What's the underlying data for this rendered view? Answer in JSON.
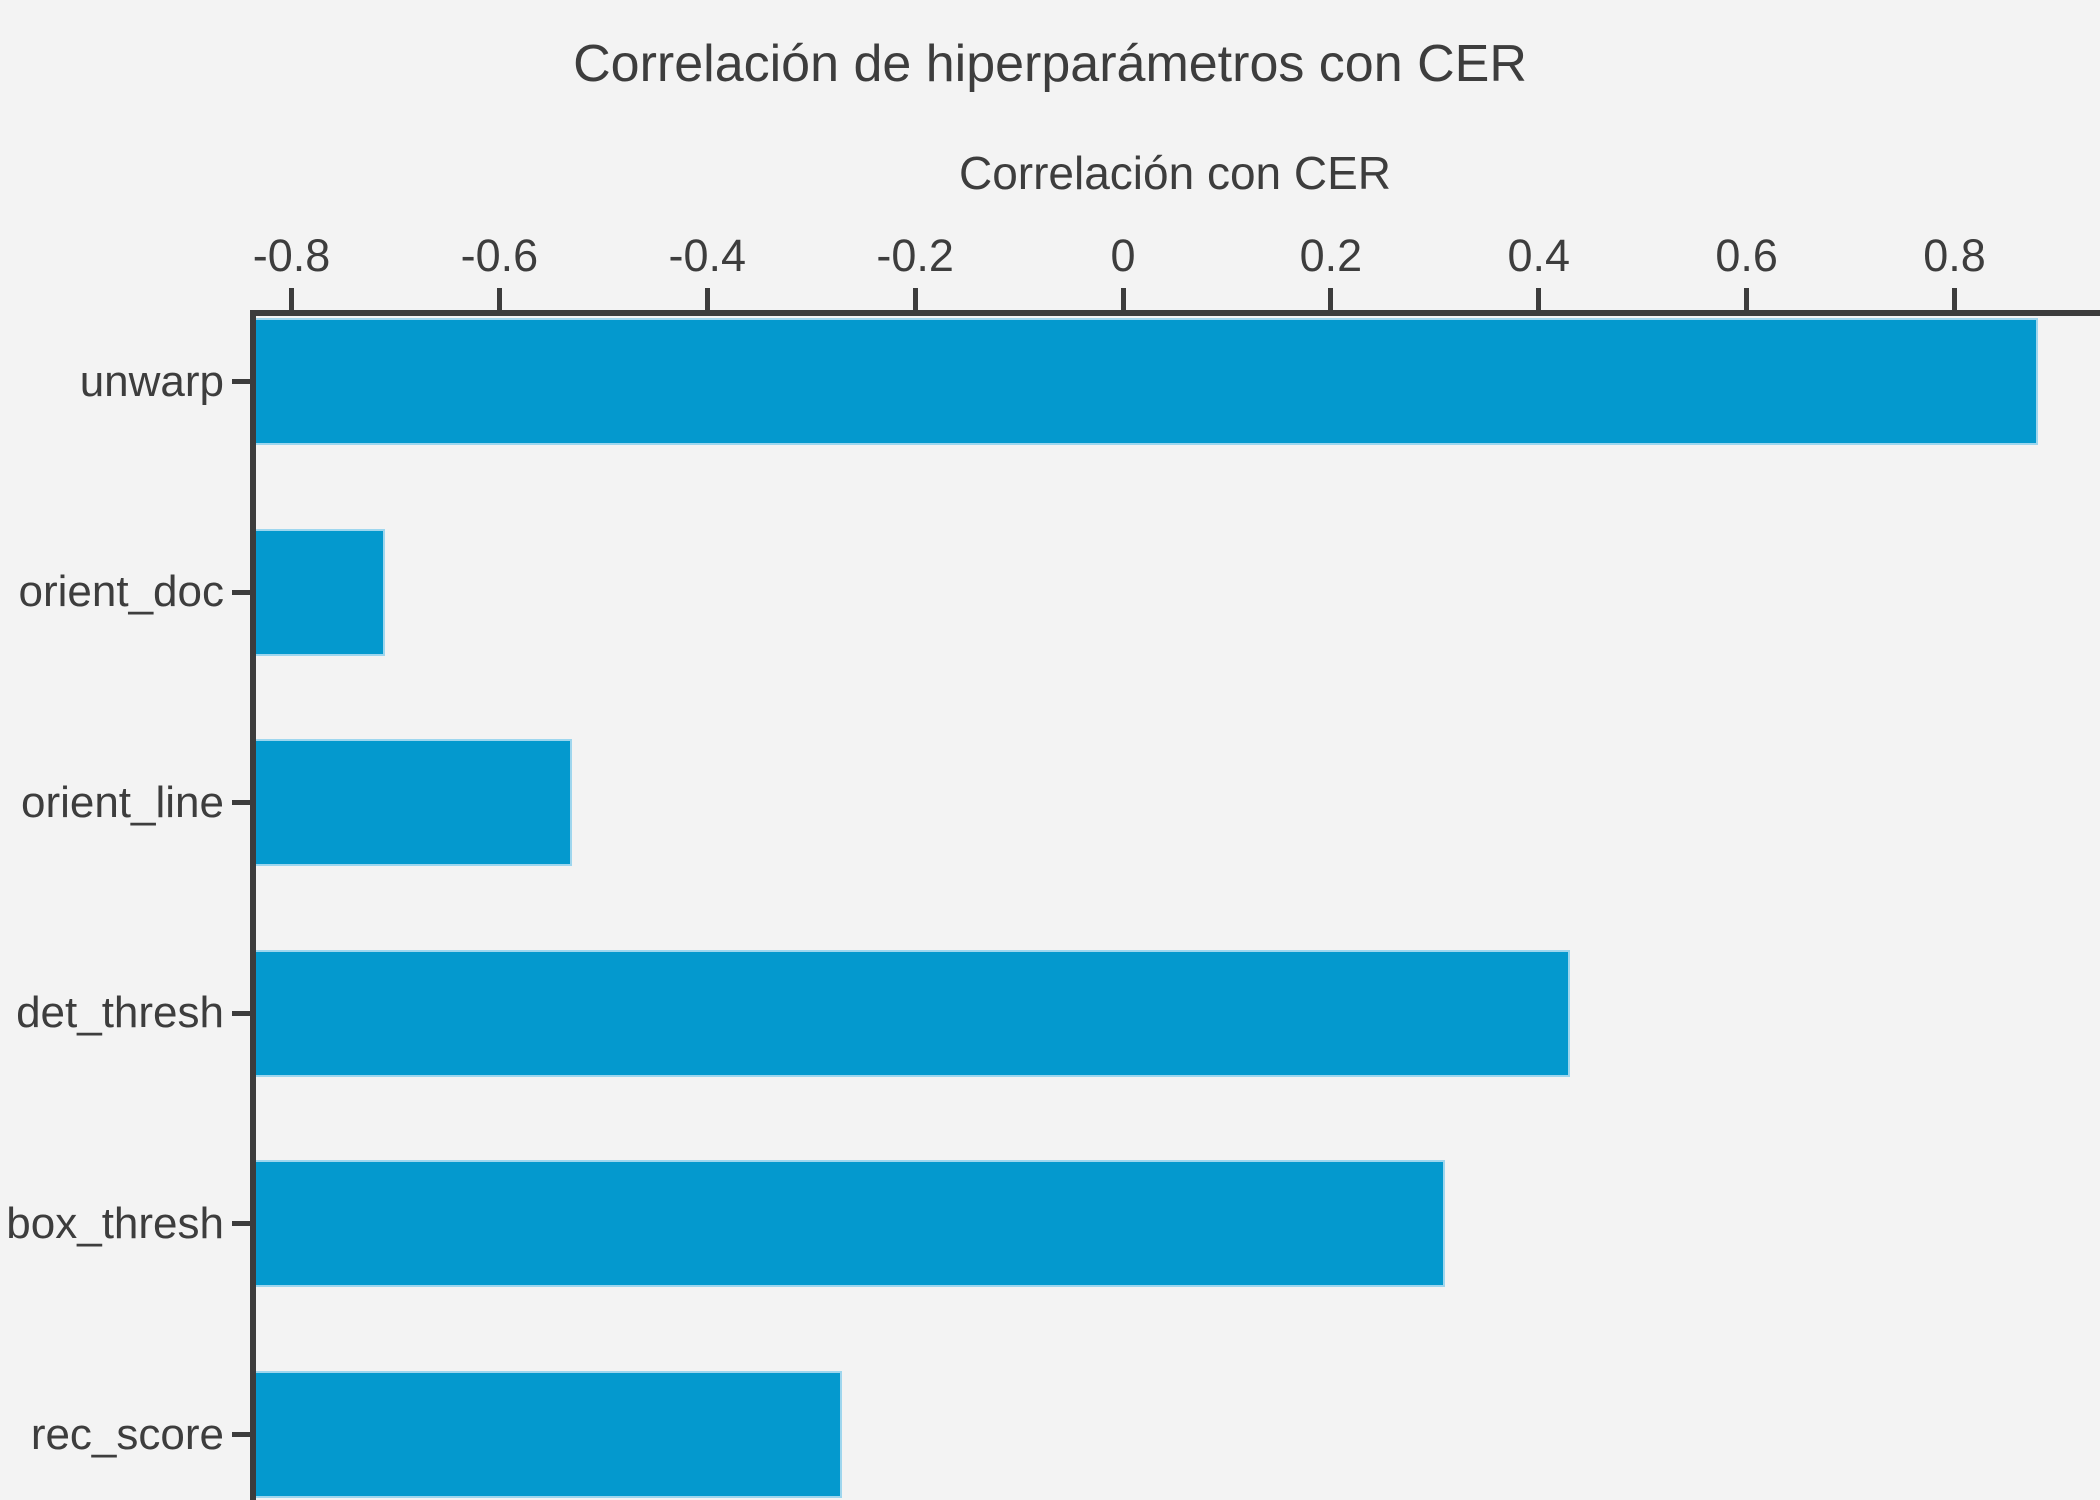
{
  "title": "Correlación de hiperparámetros con CER",
  "colors": {
    "background": "#f3f3f3",
    "bar": "#0499ce",
    "bar_edge": "#9ed6ee",
    "axis": "#3c3c3c",
    "text": "#3d3d3d"
  },
  "chart_data": {
    "type": "bar",
    "orientation": "horizontal",
    "title": "Correlación de hiperparámetros con CER",
    "xlabel": "Correlación con CER",
    "ylabel": "",
    "categories": [
      "unwarp",
      "orient_doc",
      "orient_line",
      "det_thresh",
      "box_thresh",
      "rec_score"
    ],
    "values": [
      0.88,
      -0.71,
      -0.53,
      0.43,
      0.31,
      -0.27
    ],
    "xlim": [
      -0.84,
      0.94
    ],
    "x_ticks": [
      -0.8,
      -0.6,
      -0.4,
      -0.2,
      0,
      0.2,
      0.4,
      0.6,
      0.8
    ],
    "x_tick_labels": [
      "-0.8",
      "-0.6",
      "-0.4",
      "-0.2",
      "0",
      "0.2",
      "0.4",
      "0.6",
      "0.8"
    ],
    "xaxis_position": "top",
    "bars_start_at": "xmin",
    "grid": false,
    "legend": false,
    "bar_color": "#0499ce"
  }
}
